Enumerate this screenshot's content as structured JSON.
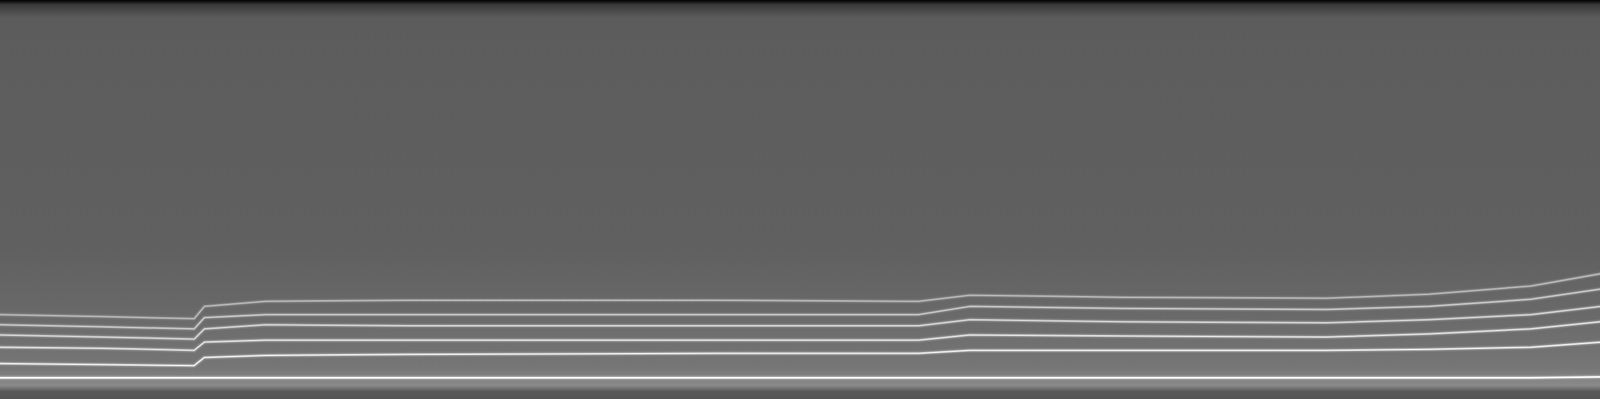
{
  "chart_data": {
    "type": "line",
    "x": [
      0,
      100,
      190,
      200,
      260,
      400,
      700,
      900,
      950,
      1100,
      1300,
      1400,
      1500,
      1568
    ],
    "xlim": [
      0,
      1568
    ],
    "ylim": [
      0,
      391
    ],
    "tick_labels": false,
    "series": [
      {
        "color": "#ffffff",
        "values": [
          21,
          21,
          21,
          21,
          21,
          21,
          21,
          21,
          21,
          21,
          21,
          21,
          21,
          22
        ]
      },
      {
        "color": "#e8e8e8",
        "values": [
          35,
          34,
          33,
          41,
          43,
          44,
          45,
          45,
          48,
          48,
          48,
          49,
          51,
          56
        ]
      },
      {
        "color": "#dcdcdc",
        "values": [
          51,
          50,
          48,
          56,
          58,
          58,
          58,
          58,
          63,
          62,
          61,
          64,
          69,
          76
        ]
      },
      {
        "color": "#d0d0d0",
        "values": [
          63,
          61,
          59,
          69,
          73,
          72,
          72,
          72,
          78,
          76,
          75,
          78,
          83,
          91
        ]
      },
      {
        "color": "#c4c4c4",
        "values": [
          73,
          71,
          69,
          80,
          83,
          83,
          83,
          83,
          91,
          89,
          88,
          91,
          98,
          108
        ]
      },
      {
        "color": "#b4b4b4",
        "values": [
          83,
          81,
          79,
          91,
          96,
          97,
          97,
          96,
          102,
          100,
          99,
          103,
          111,
          123
        ]
      }
    ]
  }
}
